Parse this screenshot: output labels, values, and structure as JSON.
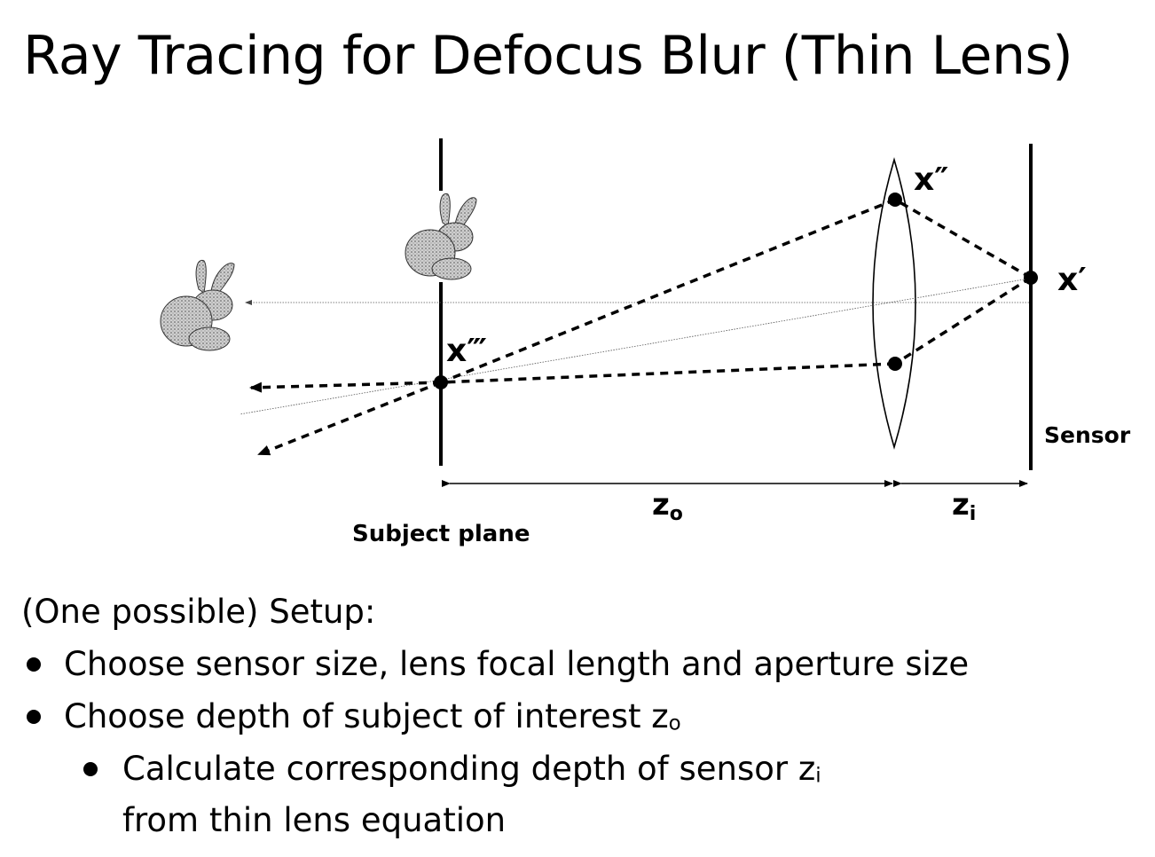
{
  "title": "Ray Tracing for Defocus Blur (Thin Lens)",
  "diagram": {
    "labels": {
      "x_double_prime": "x″",
      "x_prime": "x′",
      "x_triple_prime": "x‴",
      "sensor": "Sensor",
      "subject_plane": "Subject plane",
      "z_o_base": "z",
      "z_o_sub": "o",
      "z_i_base": "z",
      "z_i_sub": "i"
    },
    "icons": [
      "bunny-icon",
      "bunny-icon"
    ]
  },
  "setup": {
    "heading": "(One possible) Setup:",
    "bullets": [
      {
        "text": "Choose sensor size, lens focal length and aperture size"
      },
      {
        "text": "Choose depth of subject of interest z",
        "sub": "o"
      }
    ],
    "sub_bullet": {
      "line1": "Calculate corresponding depth of sensor z",
      "line1_sub": "i",
      "line2": "from thin lens equation"
    }
  }
}
